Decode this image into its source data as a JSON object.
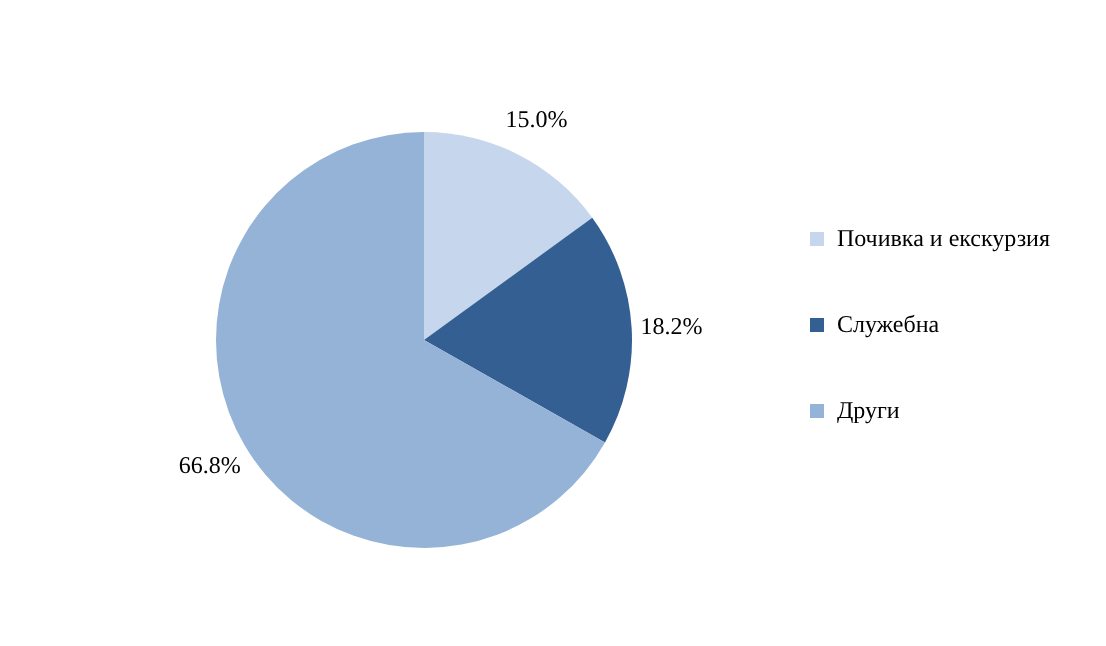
{
  "chart_data": {
    "type": "pie",
    "categories": [
      "Почивка и екскурзия",
      "Служебна",
      "Други"
    ],
    "values": [
      15.0,
      18.2,
      66.8
    ],
    "colors": [
      "#c6d6ec",
      "#345f92",
      "#95b3d7"
    ],
    "value_labels": [
      "15.0%",
      "18.2%",
      "66.8%"
    ],
    "legend": "right"
  }
}
